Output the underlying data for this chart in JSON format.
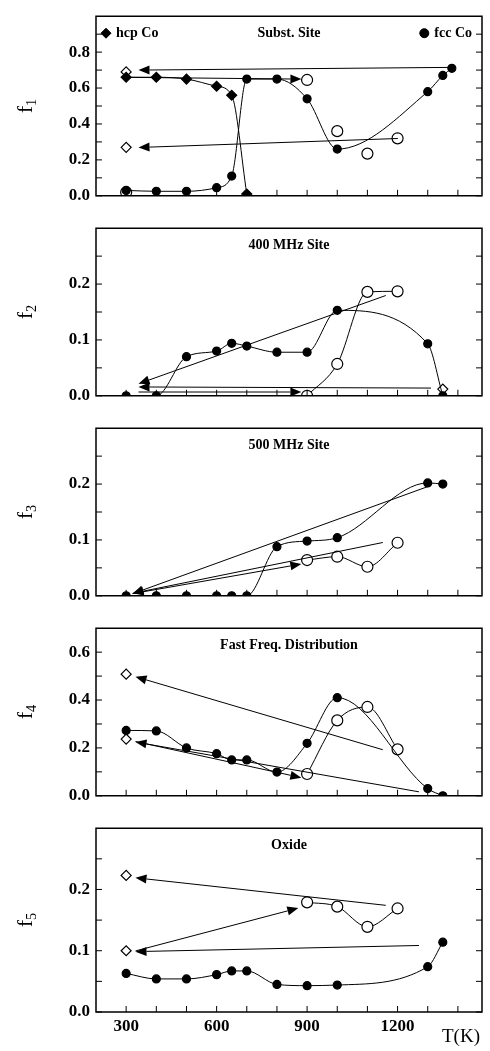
{
  "chart_data": [
    {
      "type": "line",
      "title": "Subst. Site",
      "ylabel": "f$_{1}$",
      "xlim": [
        200,
        1480
      ],
      "ylim": [
        0,
        1.0
      ],
      "xticks": [
        {
          "value": 300,
          "label": null
        },
        {
          "value": 400,
          "label": null
        },
        {
          "value": 500,
          "label": null
        },
        {
          "value": 600,
          "label": null
        },
        {
          "value": 700,
          "label": null
        },
        {
          "value": 800,
          "label": null
        },
        {
          "value": 900,
          "label": null
        },
        {
          "value": 1000,
          "label": null
        },
        {
          "value": 1100,
          "label": null
        },
        {
          "value": 1200,
          "label": null
        },
        {
          "value": 1300,
          "label": null
        },
        {
          "value": 1400,
          "label": null
        }
      ],
      "yticks": [
        {
          "value": 0,
          "label": "0.0"
        },
        {
          "value": 0.1,
          "label": null
        },
        0.2,
        {
          "value": 0.3,
          "label": null
        },
        0.4,
        {
          "value": 0.5,
          "label": null
        },
        0.6,
        {
          "value": 0.7,
          "label": null
        },
        0.8,
        {
          "value": 0.9,
          "label": null
        }
      ],
      "tick_labels": "y",
      "legend": "top",
      "series": [
        {
          "name": "hcp Co",
          "type": "line",
          "marker": "diamond",
          "color": "#000000",
          "x": [
            300,
            400,
            500,
            600,
            650,
            700
          ],
          "values": [
            0.66,
            0.66,
            0.65,
            0.61,
            0.56,
            0.01
          ]
        },
        {
          "name": "fcc Co",
          "type": "line",
          "marker": "circle",
          "color": "#000000",
          "x": [
            300,
            400,
            500,
            600,
            650,
            700,
            800,
            900,
            1000,
            1300,
            1350,
            1380
          ],
          "values": [
            0.03,
            0.025,
            0.025,
            0.045,
            0.11,
            0.65,
            0.65,
            0.54,
            0.26,
            0.58,
            0.67,
            0.71
          ]
        },
        {
          "type": "scatter",
          "marker": "circle-open",
          "color": "#000000",
          "x": [
            300,
            900,
            1000,
            1100,
            1200
          ],
          "values": [
            0.02,
            0.645,
            0.36,
            0.235,
            0.32
          ]
        },
        {
          "type": "scatter",
          "marker": "diamond-open",
          "color": "#000000",
          "x": [
            300,
            300
          ],
          "values": [
            0.69,
            0.27
          ]
        }
      ]
    },
    {
      "type": "line",
      "title": "400 MHz Site",
      "ylabel": "f$_{2}$",
      "xlim": [
        200,
        1480
      ],
      "ylim": [
        0,
        0.3
      ],
      "xticks": [
        {
          "value": 300,
          "label": null
        },
        {
          "value": 400,
          "label": null
        },
        {
          "value": 500,
          "label": null
        },
        {
          "value": 600,
          "label": null
        },
        {
          "value": 700,
          "label": null
        },
        {
          "value": 800,
          "label": null
        },
        {
          "value": 900,
          "label": null
        },
        {
          "value": 1000,
          "label": null
        },
        {
          "value": 1100,
          "label": null
        },
        {
          "value": 1200,
          "label": null
        },
        {
          "value": 1300,
          "label": null
        },
        {
          "value": 1400,
          "label": null
        }
      ],
      "yticks": [
        {
          "value": 0,
          "label": "0.0"
        },
        {
          "value": 0.05,
          "label": null
        },
        0.1,
        {
          "value": 0.15,
          "label": null
        },
        0.2,
        {
          "value": 0.25,
          "label": null
        }
      ],
      "tick_labels": "y",
      "series": [
        {
          "type": "line",
          "marker": "circle",
          "color": "#000000",
          "x": [
            300,
            400,
            500,
            600,
            650,
            700,
            800,
            900,
            1000,
            1300,
            1350
          ],
          "values": [
            0,
            0,
            0.07,
            0.08,
            0.094,
            0.089,
            0.078,
            0.078,
            0.153,
            0.093,
            0
          ]
        },
        {
          "type": "line",
          "marker": "circle-open",
          "color": "#000000",
          "x": [
            900,
            1000,
            1100,
            1200
          ],
          "values": [
            0,
            0.057,
            0.186,
            0.187
          ]
        },
        {
          "type": "scatter",
          "marker": "diamond-open",
          "color": "#000000",
          "x": [
            1350
          ],
          "values": [
            0.012
          ]
        }
      ]
    },
    {
      "type": "line",
      "title": "500 MHz Site",
      "ylabel": "f$_{3}$",
      "xlim": [
        200,
        1480
      ],
      "ylim": [
        0,
        0.3
      ],
      "xticks": [
        {
          "value": 300,
          "label": null
        },
        {
          "value": 400,
          "label": null
        },
        {
          "value": 500,
          "label": null
        },
        {
          "value": 600,
          "label": null
        },
        {
          "value": 700,
          "label": null
        },
        {
          "value": 800,
          "label": null
        },
        {
          "value": 900,
          "label": null
        },
        {
          "value": 1000,
          "label": null
        },
        {
          "value": 1100,
          "label": null
        },
        {
          "value": 1200,
          "label": null
        },
        {
          "value": 1300,
          "label": null
        },
        {
          "value": 1400,
          "label": null
        }
      ],
      "yticks": [
        {
          "value": 0,
          "label": "0.0"
        },
        {
          "value": 0.05,
          "label": null
        },
        0.1,
        {
          "value": 0.15,
          "label": null
        },
        0.2,
        {
          "value": 0.25,
          "label": null
        }
      ],
      "tick_labels": "y",
      "series": [
        {
          "type": "line",
          "marker": "circle",
          "color": "#000000",
          "x": [
            300,
            400,
            500,
            600,
            650,
            700,
            800,
            900,
            1000,
            1300,
            1350
          ],
          "values": [
            0,
            0,
            0,
            0,
            0,
            0,
            0.088,
            0.098,
            0.104,
            0.202,
            0.2
          ]
        },
        {
          "type": "line",
          "marker": "circle-open",
          "color": "#000000",
          "x": [
            900,
            1000,
            1100,
            1200
          ],
          "values": [
            0.064,
            0.07,
            0.052,
            0.095
          ]
        }
      ]
    },
    {
      "type": "line",
      "title": "Fast Freq. Distribution",
      "ylabel": "f$_{4}$",
      "xlim": [
        200,
        1480
      ],
      "ylim": [
        0,
        0.7
      ],
      "xticks": [
        {
          "value": 300,
          "label": null
        },
        {
          "value": 400,
          "label": null
        },
        {
          "value": 500,
          "label": null
        },
        {
          "value": 600,
          "label": null
        },
        {
          "value": 700,
          "label": null
        },
        {
          "value": 800,
          "label": null
        },
        {
          "value": 900,
          "label": null
        },
        {
          "value": 1000,
          "label": null
        },
        {
          "value": 1100,
          "label": null
        },
        {
          "value": 1200,
          "label": null
        },
        {
          "value": 1300,
          "label": null
        },
        {
          "value": 1400,
          "label": null
        }
      ],
      "yticks": [
        {
          "value": 0,
          "label": "0.0"
        },
        {
          "value": 0.1,
          "label": null
        },
        0.2,
        {
          "value": 0.3,
          "label": null
        },
        0.4,
        {
          "value": 0.5,
          "label": null
        },
        0.6
      ],
      "tick_labels": "y",
      "series": [
        {
          "type": "line",
          "marker": "circle",
          "color": "#000000",
          "x": [
            300,
            400,
            500,
            600,
            650,
            700,
            800,
            900,
            1000,
            1300,
            1350
          ],
          "values": [
            0.273,
            0.271,
            0.2,
            0.176,
            0.15,
            0.15,
            0.099,
            0.219,
            0.41,
            0.03,
            0
          ]
        },
        {
          "type": "line",
          "marker": "circle-open",
          "color": "#000000",
          "x": [
            900,
            1000,
            1100,
            1200
          ],
          "values": [
            0.091,
            0.315,
            0.371,
            0.194
          ]
        },
        {
          "type": "scatter",
          "marker": "diamond-open",
          "color": "#000000",
          "x": [
            300,
            300
          ],
          "values": [
            0.508,
            0.237
          ]
        }
      ]
    },
    {
      "type": "line",
      "title": "Oxide",
      "ylabel": "f$_{5}$",
      "xlabel": "T(K)",
      "xlim": [
        200,
        1480
      ],
      "ylim": [
        0,
        0.3
      ],
      "xticks": [
        300,
        {
          "value": 400,
          "label": null
        },
        {
          "value": 500,
          "label": null
        },
        600,
        {
          "value": 700,
          "label": null
        },
        {
          "value": 800,
          "label": null
        },
        900,
        {
          "value": 1000,
          "label": null
        },
        {
          "value": 1100,
          "label": null
        },
        1200,
        {
          "value": 1300,
          "label": null
        },
        {
          "value": 1400,
          "label": null
        }
      ],
      "yticks": [
        {
          "value": 0,
          "label": "0.0"
        },
        {
          "value": 0.05,
          "label": null
        },
        0.1,
        {
          "value": 0.15,
          "label": null
        },
        0.2,
        {
          "value": 0.25,
          "label": null
        }
      ],
      "series": [
        {
          "type": "line",
          "marker": "circle",
          "color": "#000000",
          "x": [
            300,
            400,
            500,
            600,
            650,
            700,
            800,
            900,
            1000,
            1300,
            1350
          ],
          "values": [
            0.063,
            0.054,
            0.054,
            0.061,
            0.067,
            0.067,
            0.045,
            0.043,
            0.044,
            0.074,
            0.114
          ]
        },
        {
          "type": "line",
          "marker": "circle-open",
          "color": "#000000",
          "x": [
            900,
            1000,
            1100,
            1200
          ],
          "values": [
            0.179,
            0.172,
            0.139,
            0.169
          ]
        },
        {
          "type": "scatter",
          "marker": "diamond-open",
          "color": "#000000",
          "x": [
            300,
            300
          ],
          "values": [
            0.223,
            0.1
          ]
        }
      ]
    }
  ]
}
